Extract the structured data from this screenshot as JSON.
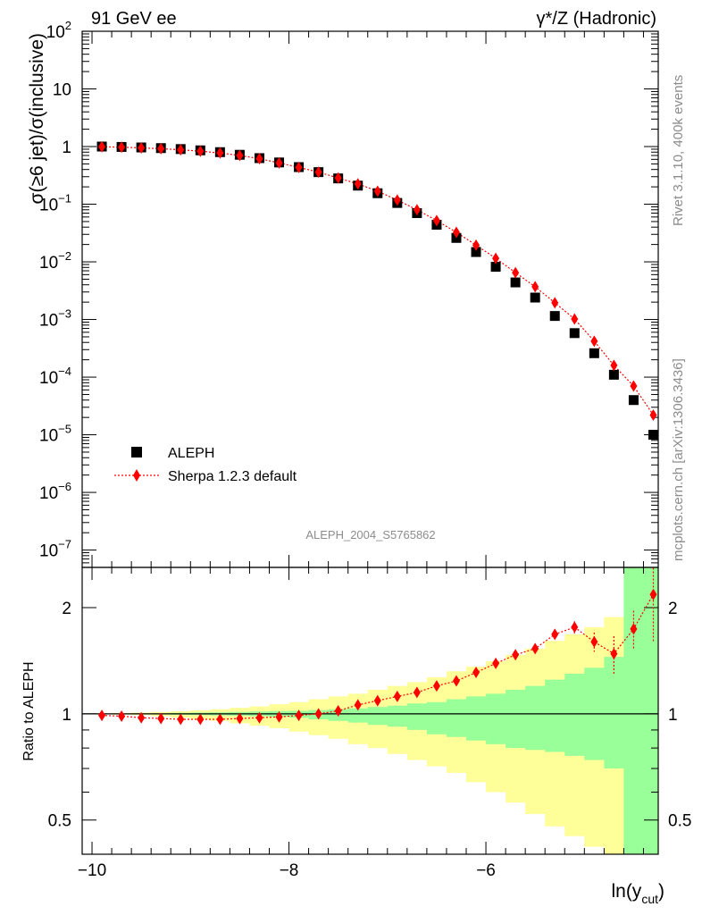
{
  "header": {
    "left_title": "91 GeV ee",
    "right_title": "γ*/Z (Hadronic)"
  },
  "side_labels": {
    "top": "Rivet 3.1.10,  400k events",
    "bottom": "mcplots.cern.ch [arXiv:1306.3436]"
  },
  "analysis_label": "ALEPH_2004_S5765862",
  "colors": {
    "data": "#000000",
    "mc": "#ff0000",
    "band_inner": "#99ff99",
    "band_outer": "#ffff99"
  },
  "chart_data": [
    {
      "type": "scatter",
      "panel": "main",
      "ylabel": "σ(≥6 jet)/σ(inclusive)",
      "yscale": "log",
      "ylim": [
        5e-08,
        100
      ],
      "xlim": [
        -10.1,
        -4.25
      ],
      "y_tick_labels": [
        "10^-7",
        "10^-6",
        "10^-5",
        "10^-4",
        "10^-3",
        "10^-2",
        "10^-1",
        "1",
        "10",
        "10^2"
      ],
      "legend_position": "lower-left",
      "x": [
        -9.9,
        -9.7,
        -9.5,
        -9.3,
        -9.1,
        -8.9,
        -8.7,
        -8.5,
        -8.3,
        -8.1,
        -7.9,
        -7.7,
        -7.5,
        -7.3,
        -7.1,
        -6.9,
        -6.7,
        -6.5,
        -6.3,
        -6.1,
        -5.9,
        -5.7,
        -5.5,
        -5.3,
        -5.1,
        -4.9,
        -4.7,
        -4.5,
        -4.3
      ],
      "series": [
        {
          "name": "ALEPH",
          "marker": "square",
          "values": [
            1.0,
            0.985,
            0.965,
            0.94,
            0.905,
            0.86,
            0.8,
            0.72,
            0.63,
            0.53,
            0.44,
            0.36,
            0.28,
            0.21,
            0.155,
            0.105,
            0.07,
            0.044,
            0.026,
            0.0148,
            0.0082,
            0.0044,
            0.0024,
            0.00115,
            0.00058,
            0.00026,
            0.00011,
            4e-05,
            1e-05
          ]
        },
        {
          "name": "Sherpa 1.2.3 default",
          "marker": "diamond",
          "values": [
            0.99,
            0.975,
            0.95,
            0.92,
            0.88,
            0.83,
            0.775,
            0.7,
            0.615,
            0.52,
            0.435,
            0.36,
            0.285,
            0.225,
            0.168,
            0.118,
            0.08,
            0.052,
            0.0325,
            0.0195,
            0.0115,
            0.0065,
            0.0037,
            0.00195,
            0.00102,
            0.00042,
            0.00016,
            7e-05,
            2.2e-05
          ]
        }
      ]
    },
    {
      "type": "scatter",
      "panel": "ratio",
      "ylabel": "Ratio to ALEPH",
      "xlabel": "ln(y_cut)",
      "yscale": "log",
      "ylim": [
        0.4,
        2.6
      ],
      "xlim": [
        -10.1,
        -4.25
      ],
      "x_tick_labels": [
        "−10",
        "−8",
        "−6"
      ],
      "y_tick_labels": [
        "0.5",
        "1",
        "2"
      ],
      "x": [
        -9.9,
        -9.7,
        -9.5,
        -9.3,
        -9.1,
        -8.9,
        -8.7,
        -8.5,
        -8.3,
        -8.1,
        -7.9,
        -7.7,
        -7.5,
        -7.3,
        -7.1,
        -6.9,
        -6.7,
        -6.5,
        -6.3,
        -6.1,
        -5.9,
        -5.7,
        -5.5,
        -5.3,
        -5.1,
        -4.9,
        -4.7,
        -4.5,
        -4.3
      ],
      "series": [
        {
          "name": "Sherpa 1.2.3 default",
          "values": [
            0.99,
            0.985,
            0.975,
            0.97,
            0.965,
            0.965,
            0.965,
            0.97,
            0.975,
            0.98,
            0.99,
            1.0,
            1.02,
            1.06,
            1.09,
            1.12,
            1.15,
            1.2,
            1.24,
            1.31,
            1.39,
            1.47,
            1.53,
            1.68,
            1.76,
            1.6,
            1.48,
            1.74,
            2.18
          ],
          "error_low": [
            0,
            0,
            0,
            0,
            0,
            0,
            0,
            0,
            0,
            0,
            0,
            0,
            0,
            0,
            0,
            0,
            0,
            0,
            0,
            0,
            0,
            0,
            0,
            0.05,
            0.07,
            0.1,
            0.18,
            0.22,
            0.58
          ],
          "error_high": [
            0,
            0,
            0,
            0,
            0,
            0,
            0,
            0,
            0,
            0,
            0,
            0,
            0,
            0,
            0,
            0,
            0,
            0,
            0,
            0,
            0,
            0,
            0,
            0.05,
            0.07,
            0.1,
            0.18,
            0.22,
            0.6
          ]
        }
      ],
      "band_edges": [
        -10.0,
        -9.8,
        -9.6,
        -9.4,
        -9.2,
        -9.0,
        -8.8,
        -8.6,
        -8.4,
        -8.2,
        -8.0,
        -7.8,
        -7.6,
        -7.4,
        -7.2,
        -7.0,
        -6.8,
        -6.6,
        -6.4,
        -6.2,
        -6.0,
        -5.8,
        -5.6,
        -5.4,
        -5.2,
        -5.0,
        -4.8,
        -4.6,
        -4.4,
        -4.2
      ],
      "band_inner_high": [
        1.0,
        1.002,
        1.003,
        1.004,
        1.006,
        1.008,
        1.01,
        1.012,
        1.015,
        1.018,
        1.02,
        1.025,
        1.03,
        1.036,
        1.045,
        1.055,
        1.07,
        1.08,
        1.1,
        1.12,
        1.14,
        1.17,
        1.2,
        1.25,
        1.3,
        1.35,
        1.45,
        2.6,
        2.6
      ],
      "band_inner_low": [
        1.0,
        0.998,
        0.997,
        0.996,
        0.994,
        0.992,
        0.99,
        0.988,
        0.985,
        0.982,
        0.975,
        0.965,
        0.955,
        0.945,
        0.93,
        0.92,
        0.9,
        0.875,
        0.86,
        0.84,
        0.82,
        0.8,
        0.79,
        0.78,
        0.76,
        0.74,
        0.7,
        0.4,
        0.4
      ],
      "band_outer_high": [
        1.003,
        1.005,
        1.008,
        1.012,
        1.017,
        1.023,
        1.03,
        1.04,
        1.05,
        1.065,
        1.08,
        1.1,
        1.12,
        1.14,
        1.17,
        1.2,
        1.23,
        1.27,
        1.32,
        1.36,
        1.41,
        1.47,
        1.53,
        1.61,
        1.68,
        1.76,
        1.88,
        1.88,
        2.6
      ],
      "band_outer_low": [
        0.997,
        0.995,
        0.992,
        0.985,
        0.975,
        0.965,
        0.955,
        0.94,
        0.925,
        0.91,
        0.89,
        0.87,
        0.85,
        0.82,
        0.8,
        0.77,
        0.74,
        0.71,
        0.68,
        0.64,
        0.6,
        0.56,
        0.52,
        0.48,
        0.45,
        0.42,
        0.4,
        0.4,
        0.4
      ]
    }
  ]
}
